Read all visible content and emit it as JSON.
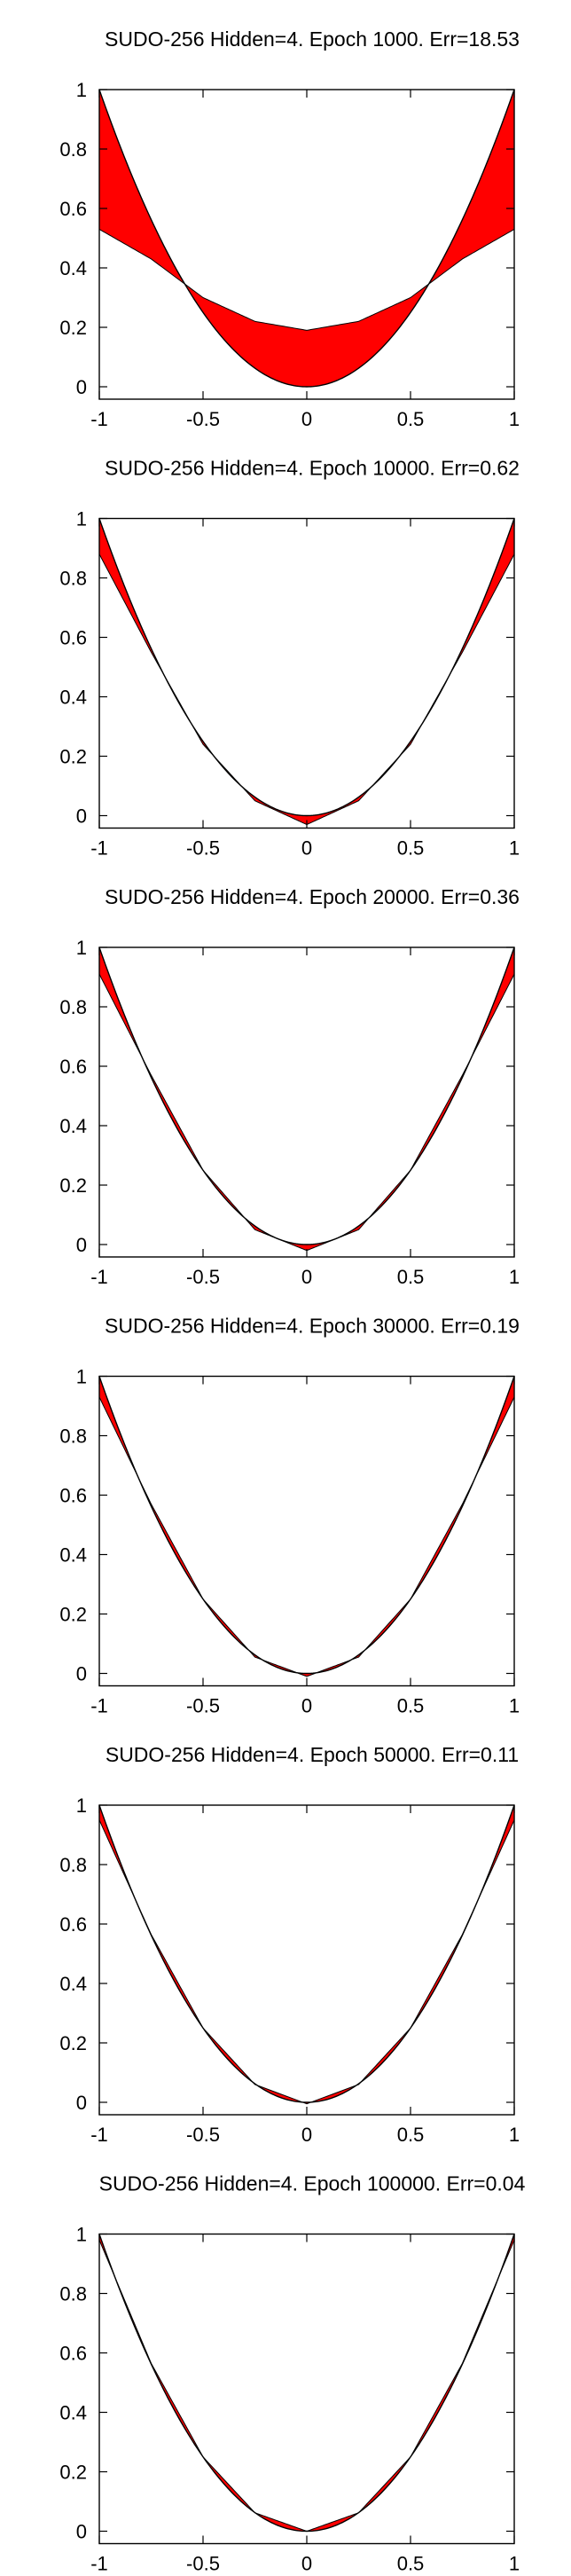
{
  "chart_data": [
    {
      "type": "area",
      "title": "SUDO-256 Hidden=4. Epoch 1000. Err=18.53",
      "xlim": [
        -1,
        1
      ],
      "ylim": [
        0,
        1
      ],
      "xticks": [
        "-1",
        "-0.5",
        "0",
        "0.5",
        "1"
      ],
      "yticks": [
        "0",
        "0.2",
        "0.4",
        "0.6",
        "0.8",
        "1"
      ],
      "grid": false,
      "series": [
        {
          "function": "y = x^2",
          "color": "#000000"
        },
        {
          "x": [
            -1,
            -0.75,
            -0.5,
            -0.25,
            0,
            0.25,
            0.5,
            0.75,
            1
          ],
          "y": [
            0.53,
            0.43,
            0.3,
            0.22,
            0.19,
            0.22,
            0.3,
            0.43,
            0.53
          ],
          "color": "#000000"
        }
      ],
      "fill_between": {
        "color": "#ff0000"
      }
    },
    {
      "type": "area",
      "title": "SUDO-256 Hidden=4. Epoch 10000. Err=0.62",
      "xlim": [
        -1,
        1
      ],
      "ylim": [
        0,
        1
      ],
      "xticks": [
        "-1",
        "-0.5",
        "0",
        "0.5",
        "1"
      ],
      "yticks": [
        "0",
        "0.2",
        "0.4",
        "0.6",
        "0.8",
        "1"
      ],
      "grid": false,
      "series": [
        {
          "function": "y = x^2",
          "color": "#000000"
        },
        {
          "x": [
            -1,
            -0.75,
            -0.5,
            -0.25,
            0,
            0.25,
            0.5,
            0.75,
            1
          ],
          "y": [
            0.88,
            0.55,
            0.24,
            0.05,
            -0.03,
            0.05,
            0.24,
            0.55,
            0.88
          ],
          "color": "#000000"
        }
      ],
      "fill_between": {
        "color": "#ff0000"
      }
    },
    {
      "type": "area",
      "title": "SUDO-256 Hidden=4. Epoch 20000. Err=0.36",
      "xlim": [
        -1,
        1
      ],
      "ylim": [
        0,
        1
      ],
      "xticks": [
        "-1",
        "-0.5",
        "0",
        "0.5",
        "1"
      ],
      "yticks": [
        "0",
        "0.2",
        "0.4",
        "0.6",
        "0.8",
        "1"
      ],
      "grid": false,
      "series": [
        {
          "function": "y = x^2",
          "color": "#000000"
        },
        {
          "x": [
            -1,
            -0.75,
            -0.5,
            -0.25,
            0,
            0.25,
            0.5,
            0.75,
            1
          ],
          "y": [
            0.91,
            0.57,
            0.25,
            0.05,
            -0.02,
            0.05,
            0.25,
            0.57,
            0.91
          ],
          "color": "#000000"
        }
      ],
      "fill_between": {
        "color": "#ff0000"
      }
    },
    {
      "type": "area",
      "title": "SUDO-256 Hidden=4. Epoch 30000. Err=0.19",
      "xlim": [
        -1,
        1
      ],
      "ylim": [
        0,
        1
      ],
      "xticks": [
        "-1",
        "-0.5",
        "0",
        "0.5",
        "1"
      ],
      "yticks": [
        "0",
        "0.2",
        "0.4",
        "0.6",
        "0.8",
        "1"
      ],
      "grid": false,
      "series": [
        {
          "function": "y = x^2",
          "color": "#000000"
        },
        {
          "x": [
            -1,
            -0.75,
            -0.5,
            -0.25,
            0,
            0.25,
            0.5,
            0.75,
            1
          ],
          "y": [
            0.93,
            0.57,
            0.25,
            0.055,
            -0.01,
            0.055,
            0.25,
            0.57,
            0.93
          ],
          "color": "#000000"
        }
      ],
      "fill_between": {
        "color": "#ff0000"
      }
    },
    {
      "type": "area",
      "title": "SUDO-256 Hidden=4. Epoch 50000. Err=0.11",
      "xlim": [
        -1,
        1
      ],
      "ylim": [
        0,
        1
      ],
      "xticks": [
        "-1",
        "-0.5",
        "0",
        "0.5",
        "1"
      ],
      "yticks": [
        "0",
        "0.2",
        "0.4",
        "0.6",
        "0.8",
        "1"
      ],
      "grid": false,
      "series": [
        {
          "function": "y = x^2",
          "color": "#000000"
        },
        {
          "x": [
            -1,
            -0.75,
            -0.5,
            -0.25,
            0,
            0.25,
            0.5,
            0.75,
            1
          ],
          "y": [
            0.95,
            0.565,
            0.25,
            0.06,
            -0.005,
            0.06,
            0.25,
            0.565,
            0.95
          ],
          "color": "#000000"
        }
      ],
      "fill_between": {
        "color": "#ff0000"
      }
    },
    {
      "type": "area",
      "title": "SUDO-256 Hidden=4. Epoch 100000. Err=0.04",
      "xlim": [
        -1,
        1
      ],
      "ylim": [
        0,
        1
      ],
      "xticks": [
        "-1",
        "-0.5",
        "0",
        "0.5",
        "1"
      ],
      "yticks": [
        "0",
        "0.2",
        "0.4",
        "0.6",
        "0.8",
        "1"
      ],
      "grid": false,
      "series": [
        {
          "function": "y = x^2",
          "color": "#000000"
        },
        {
          "x": [
            -1,
            -0.75,
            -0.5,
            -0.25,
            0,
            0.25,
            0.5,
            0.75,
            1
          ],
          "y": [
            0.98,
            0.565,
            0.25,
            0.062,
            0.0,
            0.062,
            0.25,
            0.565,
            0.98
          ],
          "color": "#000000"
        }
      ],
      "fill_between": {
        "color": "#ff0000"
      }
    }
  ]
}
